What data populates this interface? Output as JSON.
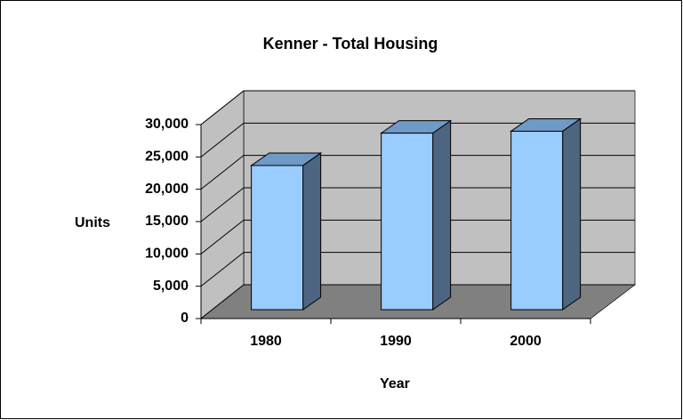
{
  "chart_data": {
    "type": "bar",
    "title": "Kenner - Total Housing",
    "xlabel": "Year",
    "ylabel": "Units",
    "categories": [
      "1980",
      "1990",
      "2000"
    ],
    "values": [
      22300,
      27300,
      27600
    ],
    "color": "#99ccff",
    "side_color": "#4d6580",
    "top_color": "#6f99c6",
    "wall_color": "#c0c0c0",
    "floor_color": "#808080",
    "ylim": [
      0,
      30000
    ],
    "yticks": [
      0,
      {
        "value": 5000,
        "label": "5,000"
      },
      {
        "value": 10000,
        "label": "10,000"
      },
      {
        "value": 15000,
        "label": "15,000"
      },
      {
        "value": 20000,
        "label": "20,000"
      },
      {
        "value": 25000,
        "label": "25,000"
      },
      {
        "value": 30000,
        "label": "30,000"
      }
    ],
    "grid": true
  }
}
